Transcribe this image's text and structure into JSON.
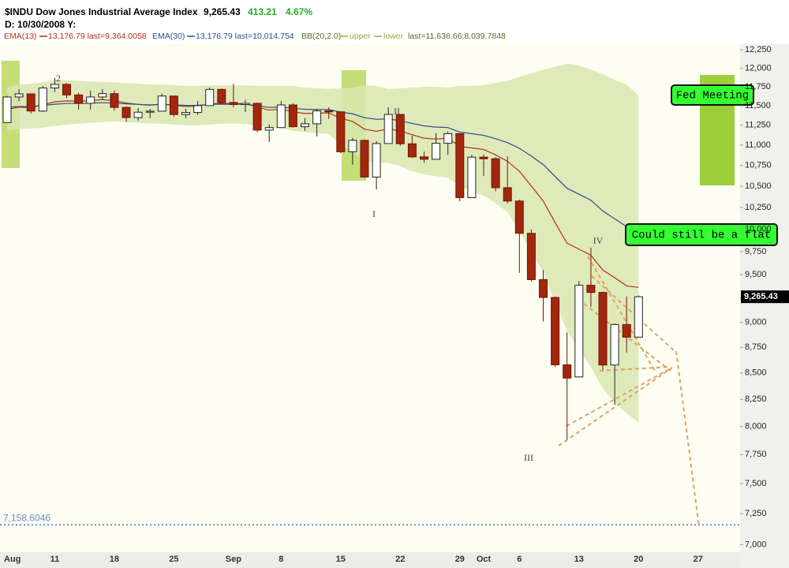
{
  "chart_data": {
    "type": "candlestick",
    "header": {
      "title": "$INDU Dow Jones Industrial Average Index",
      "price": "9,265.43",
      "change": "413.21",
      "change_pct": "4.67%",
      "date_line": "D: 10/30/2008 Y:",
      "bb_label": "BB(20,2.0)",
      "bb_last": "last=11,636.66;8,039.7848"
    },
    "log_scale": true,
    "ylim": [
      6940,
      12330
    ],
    "yticks": [
      {
        "value": 7000,
        "label": "7,000"
      },
      {
        "value": 7250,
        "label": "7,250"
      },
      {
        "value": 7500,
        "label": "7,500"
      },
      {
        "value": 7750,
        "label": "7,750"
      },
      {
        "value": 8000,
        "label": "8,000"
      },
      {
        "value": 8250,
        "label": "8,250"
      },
      {
        "value": 8500,
        "label": "8,500"
      },
      {
        "value": 8750,
        "label": "8,750"
      },
      {
        "value": 9000,
        "label": "9,000"
      },
      {
        "value": 9250,
        "label": "9,250"
      },
      {
        "value": 9500,
        "label": "9,500"
      },
      {
        "value": 9750,
        "label": "9,750"
      },
      {
        "value": 10000,
        "label": "10,000"
      },
      {
        "value": 10250,
        "label": "10,250"
      },
      {
        "value": 10500,
        "label": "10,500"
      },
      {
        "value": 10750,
        "label": "10,750"
      },
      {
        "value": 11000,
        "label": "11,000"
      },
      {
        "value": 11250,
        "label": "11,250"
      },
      {
        "value": 11500,
        "label": "11,500"
      },
      {
        "value": 11750,
        "label": "11,750"
      },
      {
        "value": 12000,
        "label": "12,000"
      },
      {
        "value": 12250,
        "label": "12,250"
      }
    ],
    "categories": [
      "Aug",
      null,
      null,
      null,
      "11",
      null,
      null,
      null,
      null,
      "18",
      null,
      null,
      null,
      null,
      "25",
      null,
      null,
      null,
      null,
      "Sep",
      null,
      null,
      null,
      "8",
      null,
      null,
      null,
      null,
      "15",
      null,
      null,
      null,
      null,
      "22",
      null,
      null,
      null,
      null,
      "29",
      null,
      "Oct",
      null,
      null,
      "6",
      null,
      null,
      null,
      null,
      "13",
      null,
      null,
      null,
      null,
      "20",
      null,
      null,
      null,
      null,
      "27",
      null,
      null,
      null
    ],
    "open": [
      11284,
      11615,
      11656,
      11432,
      11734,
      11782,
      11642,
      11532,
      11615,
      11659,
      11479,
      11348,
      11417,
      11430,
      11628,
      11387,
      11413,
      11502,
      11715,
      11543,
      11516,
      11532,
      11188,
      11220,
      11511,
      11231,
      11268,
      11434,
      11421,
      10917,
      11059,
      10609,
      11019,
      11388,
      11016,
      10854,
      10825,
      11022,
      11143,
      10365,
      10851,
      10831,
      10482,
      10325,
      9955,
      9447,
      9258,
      8579,
      8462,
      9387,
      9311,
      8577,
      8979,
      8852,
      null,
      null,
      null,
      null,
      null,
      null,
      null,
      null
    ],
    "high": [
      11630,
      11720,
      11660,
      11760,
      11867,
      11800,
      11670,
      11700,
      11720,
      11700,
      11490,
      11470,
      11460,
      11660,
      11630,
      11460,
      11560,
      11740,
      11730,
      11790,
      11580,
      11540,
      11260,
      11560,
      11530,
      11340,
      11460,
      11480,
      11430,
      11090,
      11070,
      11050,
      11480,
      11390,
      11120,
      10920,
      11150,
      11170,
      11150,
      10880,
      10880,
      10850,
      10860,
      10340,
      10000,
      9550,
      9270,
      8900,
      9430,
      9794,
      9320,
      8990,
      9270,
      9280,
      null,
      null,
      null,
      null,
      null,
      null,
      null,
      null
    ],
    "low": [
      11284,
      11560,
      11400,
      11420,
      11680,
      11600,
      11450,
      11450,
      11580,
      11440,
      11290,
      11310,
      11340,
      11430,
      11360,
      11340,
      11380,
      11500,
      11520,
      11480,
      11420,
      11160,
      11040,
      11220,
      11220,
      11180,
      11110,
      11330,
      10900,
      10760,
      10600,
      10460,
      11019,
      10990,
      10840,
      10780,
      10825,
      10880,
      10320,
      10365,
      10620,
      10440,
      10300,
      9520,
      9430,
      9010,
      8560,
      7882,
      8462,
      9160,
      8530,
      8197,
      8700,
      8850,
      null,
      null,
      null,
      null,
      null,
      null,
      null,
      null
    ],
    "close": [
      11615,
      11656,
      11432,
      11734,
      11782,
      11642,
      11532,
      11615,
      11659,
      11479,
      11348,
      11417,
      11430,
      11628,
      11387,
      11413,
      11502,
      11715,
      11543,
      11516,
      11532,
      11188,
      11220,
      11511,
      11231,
      11268,
      11434,
      11421,
      10917,
      11059,
      10609,
      11019,
      11388,
      11016,
      10854,
      10825,
      11022,
      11143,
      10365,
      10851,
      10831,
      10482,
      10325,
      9955,
      9447,
      9258,
      8579,
      8451,
      9387,
      9311,
      8577,
      8979,
      8852,
      9265.43,
      null,
      null,
      null,
      null,
      null,
      null,
      null,
      null
    ],
    "up_color": "#ffffff",
    "down_color": "#a4260e",
    "series": [
      {
        "name": "EMA(13)",
        "last_text": "13,176.79 last=9,364.0058",
        "color": "#b3301c",
        "values": [
          11453,
          11482,
          11475,
          11513,
          11551,
          11564,
          11559,
          11567,
          11581,
          11567,
          11536,
          11519,
          11507,
          11524,
          11505,
          11492,
          11493,
          11525,
          11532,
          11530,
          11530,
          11481,
          11444,
          11454,
          11422,
          11400,
          11405,
          11408,
          11338,
          11298,
          11199,
          11173,
          11203,
          11176,
          11130,
          11086,
          11076,
          11085,
          10983,
          10965,
          10946,
          10879,
          10800,
          10679,
          10503,
          10325,
          10076,
          9844,
          9779,
          9712,
          9550,
          9468,
          9380,
          9364,
          null,
          null,
          null,
          null,
          null,
          null,
          null,
          null
        ]
      },
      {
        "name": "EMA(30)",
        "last_text": "13,176.79 last=10,014.754",
        "color": "#2c4f8c",
        "values": [
          11480,
          11490,
          11490,
          11505,
          11520,
          11530,
          11530,
          11535,
          11540,
          11535,
          11525,
          11518,
          11512,
          11519,
          11511,
          11505,
          11505,
          11518,
          11520,
          11520,
          11520,
          11500,
          11480,
          11482,
          11467,
          11455,
          11453,
          11451,
          11418,
          11396,
          11346,
          11326,
          11330,
          11306,
          11273,
          11242,
          11226,
          11220,
          11163,
          11142,
          11122,
          11080,
          11030,
          10960,
          10865,
          10760,
          10615,
          10475,
          10405,
          10335,
          10210,
          10120,
          10030,
          10015,
          null,
          null,
          null,
          null,
          null,
          null,
          null,
          null
        ]
      },
      {
        "name": "upper",
        "color": "#8fb03c",
        "values": [
          11750,
          11780,
          11790,
          11810,
          11840,
          11840,
          11830,
          11820,
          11815,
          11810,
          11800,
          11790,
          11780,
          11780,
          11770,
          11760,
          11760,
          11770,
          11770,
          11770,
          11770,
          11760,
          11760,
          11760,
          11760,
          11740,
          11730,
          11720,
          11730,
          11740,
          11770,
          11760,
          11720,
          11730,
          11740,
          11750,
          11750,
          11740,
          11760,
          11760,
          11770,
          11800,
          11830,
          11880,
          11930,
          11980,
          12020,
          12060,
          12040,
          11980,
          11920,
          11840,
          11780,
          11637,
          null,
          null,
          null,
          null,
          null,
          null,
          null,
          null
        ]
      },
      {
        "name": "lower",
        "color": "#8fb03c",
        "values": [
          11180,
          11200,
          11210,
          11220,
          11240,
          11260,
          11270,
          11280,
          11290,
          11300,
          11290,
          11280,
          11270,
          11270,
          11260,
          11250,
          11250,
          11260,
          11270,
          11270,
          11270,
          11240,
          11220,
          11210,
          11180,
          11160,
          11150,
          11140,
          11000,
          10920,
          10800,
          10780,
          10780,
          10740,
          10680,
          10640,
          10620,
          10600,
          10500,
          10440,
          10390,
          10300,
          10200,
          9980,
          9750,
          9520,
          9200,
          8920,
          8720,
          8560,
          8350,
          8220,
          8120,
          8040,
          null,
          null,
          null,
          null,
          null,
          null,
          null,
          null
        ]
      }
    ],
    "band_color": "#d9e6b0",
    "last_price_marker": {
      "value": 9265.43,
      "label": "9,265.43"
    },
    "hline": {
      "value": 7158.6046,
      "label": "7,158.6046",
      "color": "#6a8ccc"
    },
    "wave_labels": [
      "2",
      "I",
      "II",
      "III",
      "IV"
    ],
    "callouts": [
      "Fed Meeting",
      "Could still be a flat"
    ]
  }
}
